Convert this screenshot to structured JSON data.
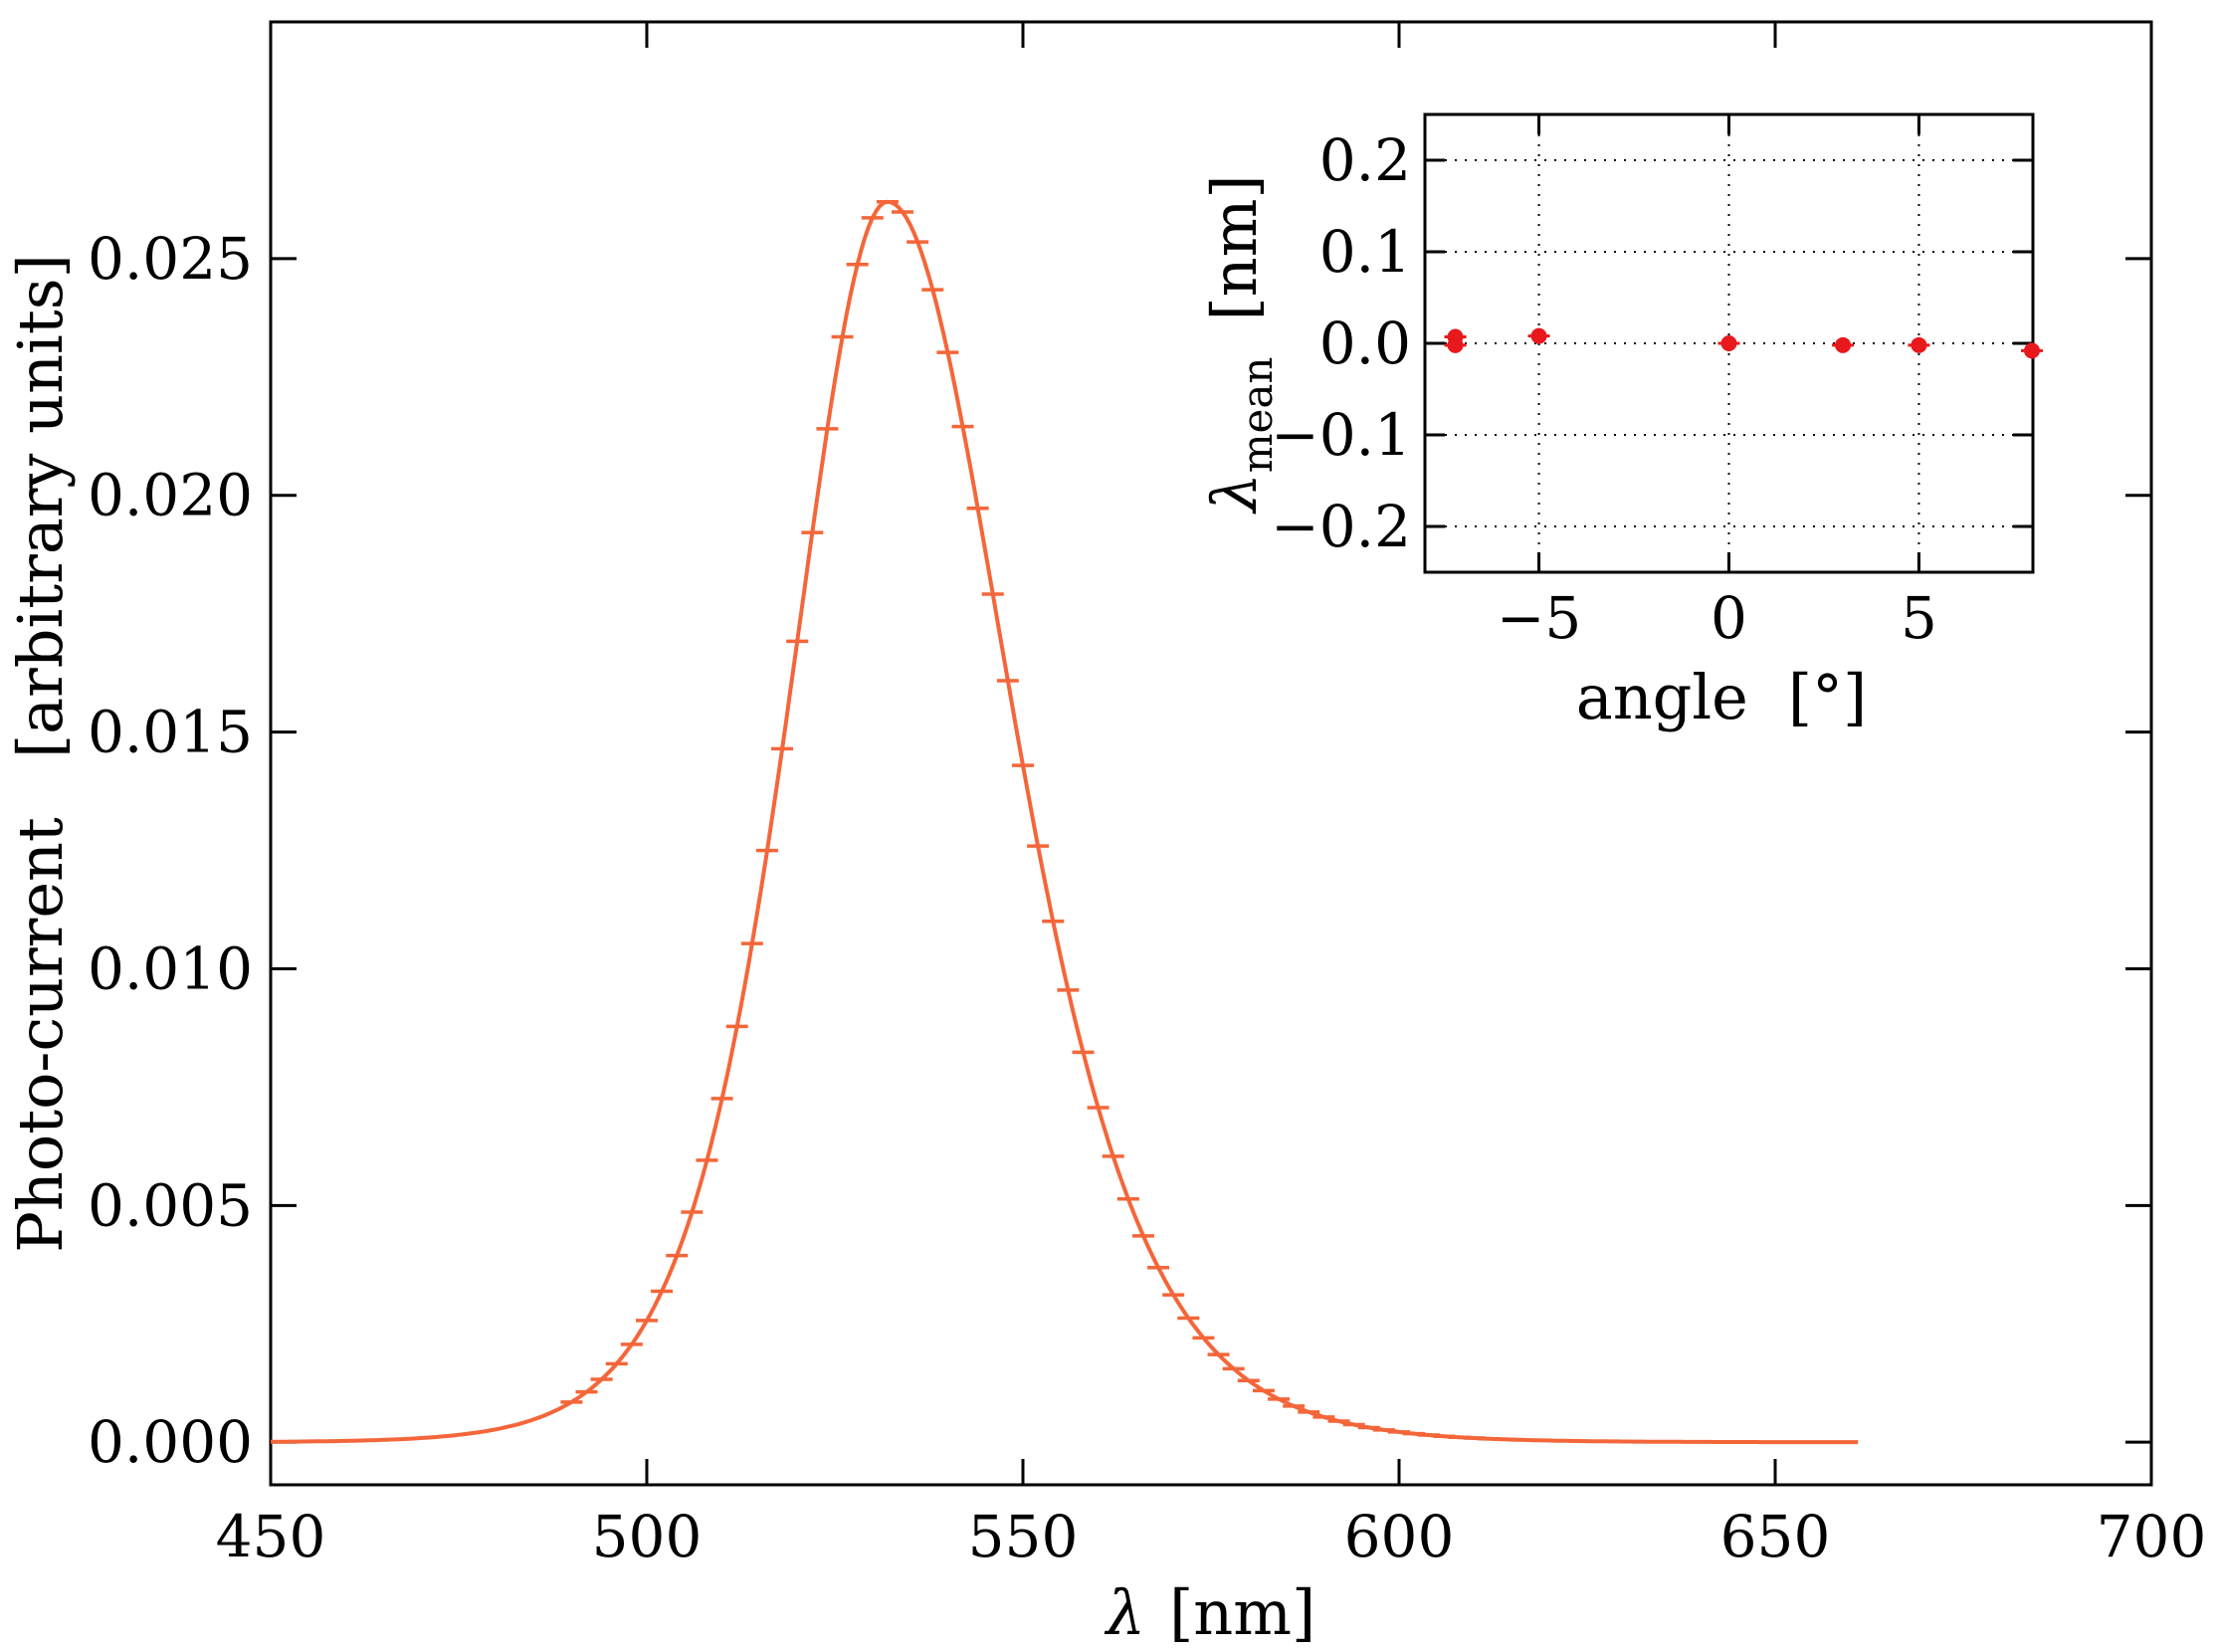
{
  "chart_data": [
    {
      "type": "line",
      "xlabel_symbol": "λ",
      "xlabel_unit": "[nm]",
      "ylabel": "Photo-current   [arbitrary units]",
      "xlim": [
        450,
        700
      ],
      "ylim": [
        -0.0009,
        0.03
      ],
      "xticks": [
        "450",
        "500",
        "550",
        "600",
        "650",
        "700"
      ],
      "yticks": [
        "0.000",
        "0.005",
        "0.010",
        "0.015",
        "0.020",
        "0.025"
      ],
      "grid": false,
      "color": "#f4663a",
      "series": [
        {
          "peak_x": 532,
          "peak_y": 0.0262,
          "x_start": 450,
          "x_end": 661,
          "error_bar_x_start": 490,
          "error_bar_x_end": 615,
          "error_bar_x_step": 2
        }
      ]
    },
    {
      "type": "scatter",
      "xlabel": "angle",
      "xlabel_unit": "[°]",
      "ylabel_symbol": "λ",
      "ylabel_sub": "mean",
      "ylabel_unit": "[nm]",
      "xlim": [
        -8,
        8
      ],
      "ylim": [
        -0.25,
        0.25
      ],
      "xticks": [
        "−5",
        "0",
        "5"
      ],
      "yticks": [
        "0.2",
        "0.1",
        "0.0",
        "−0.1",
        "−0.2"
      ],
      "grid": true,
      "color": "#e8191c",
      "x": [
        -7.2,
        -7.2,
        -5,
        0,
        3,
        5,
        8
      ],
      "y": [
        0.007,
        -0.002,
        0.008,
        0.0,
        -0.002,
        -0.002,
        -0.008
      ]
    }
  ]
}
